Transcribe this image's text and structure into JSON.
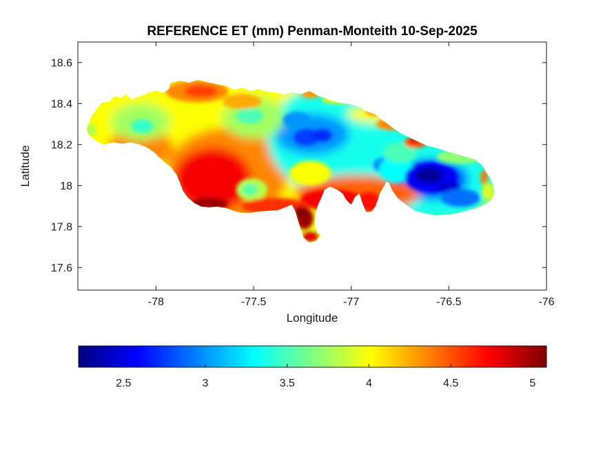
{
  "figure": {
    "title": "REFERENCE ET (mm) Penman-Monteith 10-Sep-2025",
    "background": "#ffffff"
  },
  "axes_style": {
    "box_color": "#1a1a1a",
    "tick_color": "#1a1a1a",
    "label_color": "#1a1a1a",
    "title_color": "#000000"
  },
  "chart_data": {
    "type": "heatmap",
    "title": "REFERENCE ET (mm) Penman-Monteith 10-Sep-2025",
    "xlabel": "Longitude",
    "ylabel": "Latitude",
    "region": "Jamaica",
    "units": "mm",
    "grid": false,
    "colormap": "jet",
    "xlim": [
      -78.4,
      -76.0
    ],
    "ylim": [
      17.49,
      18.7
    ],
    "x_ticks": {
      "values": [
        -78,
        -77.5,
        -77,
        -76.5,
        -76
      ],
      "labels": [
        "-78",
        "-77.5",
        "-77",
        "-76.5",
        "-76"
      ]
    },
    "y_ticks": {
      "values": [
        18.6,
        18.4,
        18.2,
        18,
        17.8,
        17.6
      ],
      "labels": [
        "18.6",
        "18.4",
        "18.2",
        "18",
        "17.8",
        "17.6"
      ]
    },
    "colorbar": {
      "orientation": "horizontal",
      "position": "bottom",
      "clim": [
        2.225,
        5.085
      ],
      "tick_values": [
        2.5,
        3,
        3.5,
        4,
        4.5,
        5
      ],
      "tick_labels": [
        "2.5",
        "3",
        "3.5",
        "4",
        "4.5",
        "5"
      ]
    },
    "value_stats": {
      "min_et": 2.3,
      "max_et": 5.08,
      "low_region": "Blue Mountains, eastern Jamaica (~ -76.6, 18.05)",
      "high_region": "south / southwest coast (~ -77.7, 17.9) and Portland Point peninsula"
    },
    "base_field_value": 3.9,
    "island_outline_lonlat": [
      [
        -78.356,
        18.275
      ],
      [
        -78.332,
        18.336
      ],
      [
        -78.314,
        18.36
      ],
      [
        -78.279,
        18.403
      ],
      [
        -78.236,
        18.41
      ],
      [
        -78.212,
        18.437
      ],
      [
        -78.184,
        18.427
      ],
      [
        -78.155,
        18.444
      ],
      [
        -78.124,
        18.42
      ],
      [
        -78.078,
        18.437
      ],
      [
        -78.032,
        18.454
      ],
      [
        -78.0,
        18.464
      ],
      [
        -77.965,
        18.451
      ],
      [
        -77.933,
        18.471
      ],
      [
        -77.926,
        18.501
      ],
      [
        -77.876,
        18.511
      ],
      [
        -77.831,
        18.501
      ],
      [
        -77.785,
        18.515
      ],
      [
        -77.742,
        18.505
      ],
      [
        -77.689,
        18.494
      ],
      [
        -77.636,
        18.484
      ],
      [
        -77.601,
        18.467
      ],
      [
        -77.558,
        18.477
      ],
      [
        -77.513,
        18.461
      ],
      [
        -77.477,
        18.471
      ],
      [
        -77.431,
        18.457
      ],
      [
        -77.389,
        18.454
      ],
      [
        -77.347,
        18.444
      ],
      [
        -77.301,
        18.454
      ],
      [
        -77.255,
        18.447
      ],
      [
        -77.213,
        18.461
      ],
      [
        -77.17,
        18.437
      ],
      [
        -77.135,
        18.427
      ],
      [
        -77.1,
        18.413
      ],
      [
        -77.054,
        18.403
      ],
      [
        -77.008,
        18.397
      ],
      [
        -76.965,
        18.386
      ],
      [
        -76.923,
        18.363
      ],
      [
        -76.877,
        18.346
      ],
      [
        -76.831,
        18.312
      ],
      [
        -76.789,
        18.282
      ],
      [
        -76.747,
        18.255
      ],
      [
        -76.704,
        18.235
      ],
      [
        -76.658,
        18.214
      ],
      [
        -76.613,
        18.194
      ],
      [
        -76.567,
        18.184
      ],
      [
        -76.514,
        18.167
      ],
      [
        -76.465,
        18.154
      ],
      [
        -76.415,
        18.14
      ],
      [
        -76.366,
        18.127
      ],
      [
        -76.33,
        18.1
      ],
      [
        -76.309,
        18.066
      ],
      [
        -76.291,
        18.039
      ],
      [
        -76.274,
        18.005
      ],
      [
        -76.267,
        17.965
      ],
      [
        -76.281,
        17.931
      ],
      [
        -76.309,
        17.911
      ],
      [
        -76.355,
        17.891
      ],
      [
        -76.408,
        17.877
      ],
      [
        -76.461,
        17.864
      ],
      [
        -76.514,
        17.857
      ],
      [
        -76.57,
        17.854
      ],
      [
        -76.623,
        17.864
      ],
      [
        -76.673,
        17.877
      ],
      [
        -76.718,
        17.904
      ],
      [
        -76.761,
        17.938
      ],
      [
        -76.789,
        17.975
      ],
      [
        -76.806,
        18.012
      ],
      [
        -76.82,
        18.019
      ],
      [
        -76.835,
        17.992
      ],
      [
        -76.852,
        17.965
      ],
      [
        -76.877,
        17.897
      ],
      [
        -76.895,
        17.874
      ],
      [
        -76.923,
        17.87
      ],
      [
        -76.941,
        17.911
      ],
      [
        -76.958,
        17.961
      ],
      [
        -76.98,
        17.945
      ],
      [
        -77.001,
        17.907
      ],
      [
        -77.026,
        17.931
      ],
      [
        -77.043,
        17.961
      ],
      [
        -77.075,
        17.982
      ],
      [
        -77.11,
        17.995
      ],
      [
        -77.138,
        17.978
      ],
      [
        -77.153,
        17.941
      ],
      [
        -77.17,
        17.907
      ],
      [
        -77.184,
        17.86
      ],
      [
        -77.188,
        17.813
      ],
      [
        -77.174,
        17.773
      ],
      [
        -77.156,
        17.756
      ],
      [
        -77.181,
        17.729
      ],
      [
        -77.216,
        17.722
      ],
      [
        -77.244,
        17.746
      ],
      [
        -77.258,
        17.786
      ],
      [
        -77.273,
        17.833
      ],
      [
        -77.287,
        17.877
      ],
      [
        -77.305,
        17.907
      ],
      [
        -77.336,
        17.894
      ],
      [
        -77.375,
        17.88
      ],
      [
        -77.421,
        17.877
      ],
      [
        -77.467,
        17.874
      ],
      [
        -77.516,
        17.867
      ],
      [
        -77.566,
        17.867
      ],
      [
        -77.601,
        17.877
      ],
      [
        -77.643,
        17.891
      ],
      [
        -77.686,
        17.897
      ],
      [
        -77.728,
        17.894
      ],
      [
        -77.767,
        17.897
      ],
      [
        -77.802,
        17.914
      ],
      [
        -77.837,
        17.941
      ],
      [
        -77.862,
        17.975
      ],
      [
        -77.876,
        18.012
      ],
      [
        -77.894,
        18.052
      ],
      [
        -77.922,
        18.089
      ],
      [
        -77.951,
        18.11
      ],
      [
        -77.982,
        18.137
      ],
      [
        -78.011,
        18.164
      ],
      [
        -78.042,
        18.184
      ],
      [
        -78.085,
        18.201
      ],
      [
        -78.131,
        18.211
      ],
      [
        -78.173,
        18.204
      ],
      [
        -78.219,
        18.211
      ],
      [
        -78.265,
        18.201
      ],
      [
        -78.296,
        18.211
      ],
      [
        -78.325,
        18.231
      ],
      [
        -78.346,
        18.251
      ]
    ],
    "field_blobs_smooth": [
      [
        -77.74,
        18.17,
        0.92,
        0.47,
        4.0
      ],
      [
        -78.08,
        18.18,
        0.17,
        0.095,
        4.35
      ],
      [
        -77.64,
        18.05,
        0.31,
        0.23,
        4.35
      ],
      [
        -77.71,
        18.03,
        0.2,
        0.155,
        4.75
      ],
      [
        -76.97,
        18.23,
        0.46,
        0.3,
        3.35
      ],
      [
        -76.56,
        18.02,
        0.3,
        0.19,
        3.35
      ],
      [
        -77.2,
        18.25,
        0.19,
        0.1,
        3.0
      ],
      [
        -76.59,
        18.03,
        0.19,
        0.1,
        2.85
      ],
      [
        -78.08,
        18.31,
        0.15,
        0.09,
        3.75
      ],
      [
        -77.5,
        18.33,
        0.16,
        0.1,
        3.75
      ],
      [
        -76.97,
        17.96,
        0.32,
        0.09,
        4.45
      ],
      [
        -76.88,
        18.35,
        0.14,
        0.044,
        4.0
      ]
    ],
    "field_blobs_detail": [
      [
        -77.23,
        18.235,
        0.064,
        0.04,
        2.75
      ],
      [
        -77.15,
        18.245,
        0.05,
        0.03,
        2.7
      ],
      [
        -77.28,
        18.32,
        0.07,
        0.04,
        3.0
      ],
      [
        -76.83,
        18.1,
        0.056,
        0.037,
        2.95
      ],
      [
        -76.77,
        18.08,
        0.088,
        0.067,
        3.3
      ],
      [
        -76.59,
        18.04,
        0.134,
        0.074,
        2.55
      ],
      [
        -76.6,
        18.05,
        0.07,
        0.037,
        2.3
      ],
      [
        -76.5,
        17.99,
        0.056,
        0.03,
        2.45
      ],
      [
        -76.44,
        17.94,
        0.1,
        0.044,
        2.9
      ],
      [
        -76.44,
        18.14,
        0.123,
        0.034,
        3.7
      ],
      [
        -76.75,
        18.16,
        0.088,
        0.05,
        3.5
      ],
      [
        -76.78,
        18.3,
        0.092,
        0.03,
        4.35
      ],
      [
        -76.88,
        18.36,
        0.046,
        0.02,
        4.3
      ],
      [
        -76.67,
        18.21,
        0.06,
        0.027,
        4.5
      ],
      [
        -76.68,
        18.22,
        0.025,
        0.014,
        4.8
      ],
      [
        -76.32,
        18.04,
        0.018,
        0.037,
        4.4
      ],
      [
        -76.3,
        17.97,
        0.032,
        0.044,
        3.9
      ],
      [
        -78.07,
        18.29,
        0.056,
        0.034,
        3.45
      ],
      [
        -78.34,
        18.27,
        0.035,
        0.03,
        3.8
      ],
      [
        -77.52,
        18.34,
        0.07,
        0.037,
        3.5
      ],
      [
        -77.79,
        18.46,
        0.16,
        0.054,
        4.35
      ],
      [
        -77.77,
        18.46,
        0.085,
        0.03,
        4.55
      ],
      [
        -77.56,
        18.41,
        0.1,
        0.037,
        4.25
      ],
      [
        -77.206,
        18.448,
        0.05,
        0.022,
        4.3
      ],
      [
        -77.07,
        18.42,
        0.08,
        0.02,
        4.05
      ],
      [
        -77.73,
        17.91,
        0.1,
        0.03,
        5.0
      ],
      [
        -77.51,
        17.98,
        0.08,
        0.055,
        3.8
      ],
      [
        -77.52,
        17.98,
        0.04,
        0.03,
        3.55
      ],
      [
        -77.1,
        17.93,
        0.16,
        0.05,
        4.75
      ],
      [
        -77.39,
        17.9,
        0.17,
        0.04,
        4.6
      ],
      [
        -77.24,
        17.84,
        0.046,
        0.054,
        5.0
      ],
      [
        -77.26,
        17.87,
        0.032,
        0.027,
        5.08
      ],
      [
        -77.21,
        17.75,
        0.039,
        0.024,
        4.8
      ],
      [
        -76.91,
        17.92,
        0.06,
        0.047,
        4.7
      ],
      [
        -77.21,
        18.06,
        0.106,
        0.06,
        4.0
      ]
    ]
  }
}
